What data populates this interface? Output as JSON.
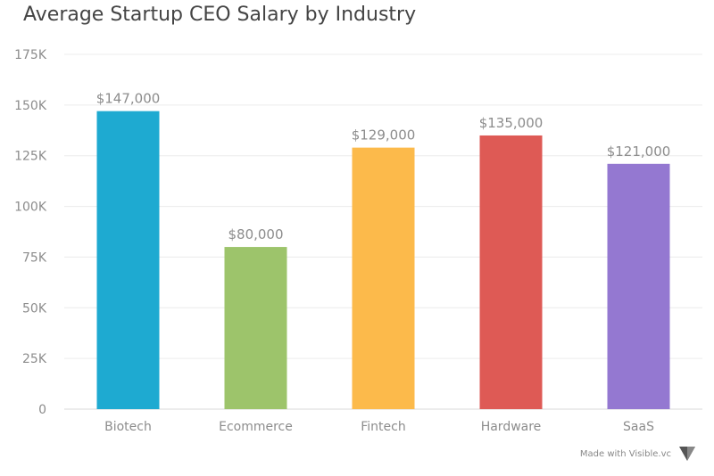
{
  "chart_data": {
    "type": "bar",
    "title": "Average Startup CEO Salary by Industry",
    "categories": [
      "Biotech",
      "Ecommerce",
      "Fintech",
      "Hardware",
      "SaaS"
    ],
    "values": [
      147000,
      80000,
      129000,
      135000,
      121000
    ],
    "data_labels": [
      "$147,000",
      "$80,000",
      "$129,000",
      "$135,000",
      "$121,000"
    ],
    "colors": [
      "#1eaad1",
      "#9dc46b",
      "#fcba4b",
      "#de5a55",
      "#9478d1"
    ],
    "xlabel": "",
    "ylabel": "",
    "ylim": [
      0,
      175000
    ],
    "yticks": [
      0,
      25000,
      50000,
      75000,
      100000,
      125000,
      150000,
      175000
    ],
    "ytick_labels": [
      "0",
      "25K",
      "50K",
      "75K",
      "100K",
      "125K",
      "150K",
      "175K"
    ],
    "grid": true,
    "legend": "none"
  },
  "footer": {
    "text": "Made with Visible.vc",
    "logo_icon": "visible-logo-icon"
  }
}
